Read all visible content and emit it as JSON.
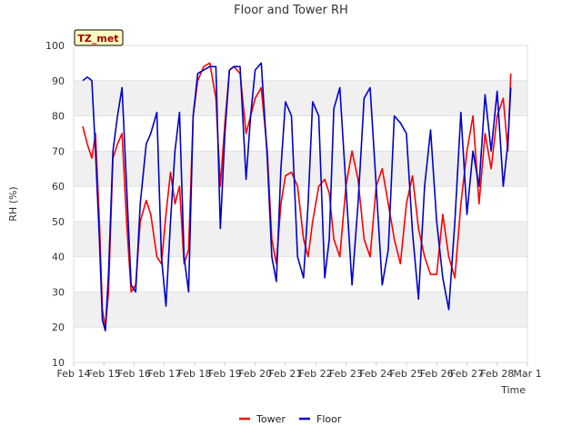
{
  "chart_data": {
    "type": "line",
    "title": "Floor and Tower RH",
    "xlabel": "Time",
    "ylabel": "RH (%)",
    "ylim": [
      10,
      100
    ],
    "yticks": [
      10,
      20,
      30,
      40,
      50,
      60,
      70,
      80,
      90,
      100
    ],
    "xlim": [
      0,
      15
    ],
    "xtick_labels": [
      "Feb 14",
      "Feb 15",
      "Feb 16",
      "Feb 17",
      "Feb 18",
      "Feb 19",
      "Feb 20",
      "Feb 21",
      "Feb 22",
      "Feb 23",
      "Feb 24",
      "Feb 25",
      "Feb 26",
      "Feb 27",
      "Feb 28",
      "Mar 1"
    ],
    "badge": "TZ_met",
    "grid_bands": true,
    "legend_position": "bottom-center",
    "colors": {
      "Tower": "#ff0000",
      "Floor": "#0000cc",
      "band": "#f0f0f0",
      "badge_bg": "#ffffc0"
    },
    "series": [
      {
        "name": "Tower",
        "x": [
          0.3,
          0.45,
          0.6,
          0.72,
          0.85,
          0.95,
          1.05,
          1.15,
          1.3,
          1.45,
          1.6,
          1.75,
          1.9,
          2.05,
          2.2,
          2.4,
          2.55,
          2.75,
          2.9,
          3.05,
          3.2,
          3.35,
          3.5,
          3.65,
          3.8,
          3.95,
          4.1,
          4.3,
          4.5,
          4.7,
          4.85,
          5.0,
          5.15,
          5.3,
          5.5,
          5.7,
          5.85,
          6.0,
          6.2,
          6.4,
          6.55,
          6.7,
          6.85,
          7.0,
          7.2,
          7.4,
          7.6,
          7.75,
          7.9,
          8.1,
          8.3,
          8.45,
          8.6,
          8.8,
          9.0,
          9.2,
          9.4,
          9.6,
          9.8,
          10.0,
          10.2,
          10.4,
          10.6,
          10.8,
          11.0,
          11.2,
          11.4,
          11.6,
          11.8,
          12.0,
          12.2,
          12.4,
          12.6,
          12.8,
          13.0,
          13.2,
          13.4,
          13.6,
          13.8,
          14.0,
          14.2,
          14.35,
          14.45
        ],
        "values": [
          77,
          72,
          68,
          75,
          50,
          25,
          20,
          30,
          68,
          72,
          75,
          50,
          30,
          32,
          50,
          56,
          52,
          40,
          38,
          52,
          64,
          55,
          60,
          38,
          42,
          80,
          90,
          94,
          95,
          85,
          60,
          78,
          93,
          94,
          92,
          75,
          80,
          85,
          88,
          70,
          45,
          38,
          55,
          63,
          64,
          60,
          45,
          40,
          50,
          60,
          62,
          58,
          45,
          40,
          60,
          70,
          62,
          45,
          40,
          60,
          65,
          55,
          45,
          38,
          55,
          63,
          48,
          40,
          35,
          35,
          52,
          40,
          34,
          55,
          70,
          80,
          55,
          75,
          65,
          80,
          85,
          70,
          92
        ]
      },
      {
        "name": "Floor",
        "x": [
          0.3,
          0.45,
          0.6,
          0.72,
          0.85,
          0.95,
          1.05,
          1.15,
          1.3,
          1.45,
          1.6,
          1.75,
          1.9,
          2.05,
          2.2,
          2.4,
          2.55,
          2.75,
          2.9,
          3.05,
          3.2,
          3.35,
          3.5,
          3.65,
          3.8,
          3.95,
          4.1,
          4.3,
          4.5,
          4.7,
          4.85,
          5.0,
          5.15,
          5.3,
          5.5,
          5.7,
          5.85,
          6.0,
          6.2,
          6.4,
          6.55,
          6.7,
          6.85,
          7.0,
          7.2,
          7.4,
          7.6,
          7.75,
          7.9,
          8.1,
          8.3,
          8.45,
          8.6,
          8.8,
          9.0,
          9.2,
          9.4,
          9.6,
          9.8,
          10.0,
          10.2,
          10.4,
          10.6,
          10.8,
          11.0,
          11.2,
          11.4,
          11.6,
          11.8,
          12.0,
          12.2,
          12.4,
          12.6,
          12.8,
          13.0,
          13.2,
          13.4,
          13.6,
          13.8,
          14.0,
          14.2,
          14.35,
          14.45
        ],
        "values": [
          90,
          91,
          90,
          70,
          45,
          22,
          19,
          35,
          70,
          80,
          88,
          60,
          32,
          30,
          55,
          72,
          75,
          81,
          40,
          26,
          50,
          70,
          81,
          40,
          30,
          80,
          92,
          93,
          94,
          94,
          48,
          75,
          93,
          94,
          94,
          62,
          80,
          93,
          95,
          68,
          40,
          33,
          65,
          84,
          80,
          40,
          34,
          55,
          84,
          80,
          34,
          45,
          82,
          88,
          60,
          32,
          55,
          85,
          88,
          60,
          32,
          42,
          80,
          78,
          75,
          47,
          28,
          60,
          76,
          50,
          34,
          25,
          50,
          81,
          52,
          70,
          60,
          86,
          70,
          87,
          60,
          72,
          88
        ]
      }
    ]
  }
}
